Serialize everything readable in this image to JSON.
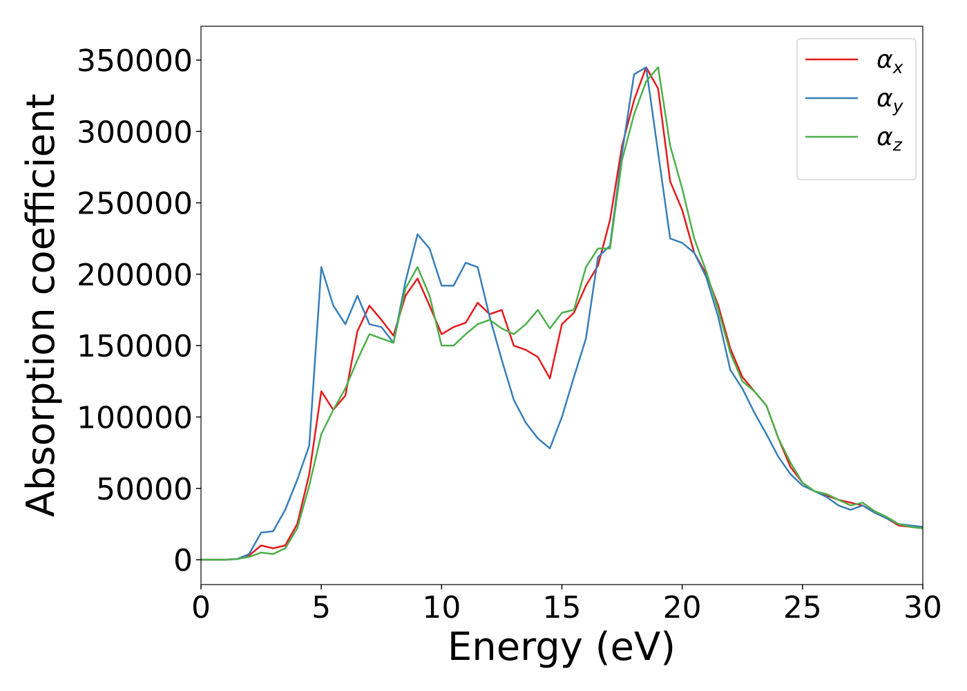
{
  "chart_data": {
    "type": "line",
    "xlabel": "Energy (eV)",
    "ylabel": "Absorption coefficient",
    "x": [
      0,
      0.5,
      1,
      1.5,
      2,
      2.5,
      3,
      3.5,
      4,
      4.5,
      5,
      5.5,
      6,
      6.5,
      7,
      7.5,
      8,
      8.5,
      9,
      9.5,
      10,
      10.5,
      11,
      11.5,
      12,
      12.5,
      13,
      13.5,
      14,
      14.5,
      15,
      15.5,
      16,
      16.5,
      17,
      17.5,
      18,
      18.5,
      19,
      19.5,
      20,
      20.5,
      21,
      21.5,
      22,
      22.5,
      23,
      23.5,
      24,
      24.5,
      25,
      25.5,
      26,
      26.5,
      27,
      27.5,
      28,
      28.5,
      29,
      29.5,
      30
    ],
    "series": [
      {
        "name": "αx",
        "color": "#e41a1c",
        "values": [
          0,
          0,
          0,
          500,
          3000,
          10000,
          8000,
          10000,
          25000,
          60000,
          118000,
          105000,
          115000,
          160000,
          178000,
          168000,
          157000,
          185000,
          197000,
          178000,
          158000,
          163000,
          166000,
          180000,
          172000,
          175000,
          150000,
          147000,
          142000,
          127000,
          165000,
          173000,
          192000,
          206000,
          238000,
          290000,
          322000,
          345000,
          330000,
          265000,
          245000,
          215000,
          200000,
          178000,
          148000,
          128000,
          118000,
          108000,
          85000,
          65000,
          54000,
          48000,
          45000,
          42000,
          40000,
          38000,
          33000,
          29000,
          24000,
          23000,
          22000
        ]
      },
      {
        "name": "αy",
        "color": "#377eb8",
        "values": [
          0,
          0,
          0,
          500,
          4000,
          19000,
          20000,
          35000,
          56000,
          80000,
          205000,
          178000,
          165000,
          185000,
          165000,
          163000,
          152000,
          195000,
          228000,
          218000,
          192000,
          192000,
          208000,
          205000,
          170000,
          140000,
          112000,
          96000,
          85000,
          78000,
          100000,
          128000,
          155000,
          212000,
          220000,
          285000,
          340000,
          345000,
          285000,
          225000,
          222000,
          215000,
          198000,
          170000,
          133000,
          120000,
          103000,
          88000,
          72000,
          60000,
          52000,
          48000,
          44000,
          38000,
          35000,
          38000,
          33000,
          29000,
          25000,
          24000,
          23000
        ]
      },
      {
        "name": "αz",
        "color": "#4daf4a",
        "values": [
          0,
          0,
          0,
          500,
          2000,
          5000,
          4000,
          8000,
          22000,
          52000,
          88000,
          105000,
          120000,
          140000,
          158000,
          155000,
          152000,
          190000,
          205000,
          185000,
          150000,
          150000,
          158000,
          165000,
          168000,
          162000,
          158000,
          165000,
          175000,
          162000,
          173000,
          175000,
          205000,
          218000,
          218000,
          280000,
          312000,
          335000,
          345000,
          290000,
          260000,
          225000,
          202000,
          175000,
          145000,
          125000,
          118000,
          108000,
          85000,
          68000,
          54000,
          48000,
          46000,
          42000,
          38000,
          40000,
          34000,
          30000,
          25000,
          23000,
          22000
        ]
      }
    ],
    "xlim": [
      0,
      30
    ],
    "xticks": [
      0,
      5,
      10,
      15,
      20,
      25,
      30
    ],
    "ylim": [
      -17400,
      373700
    ],
    "yticks": [
      0,
      50000,
      100000,
      150000,
      200000,
      250000,
      300000,
      350000
    ],
    "legend": "upper right"
  }
}
